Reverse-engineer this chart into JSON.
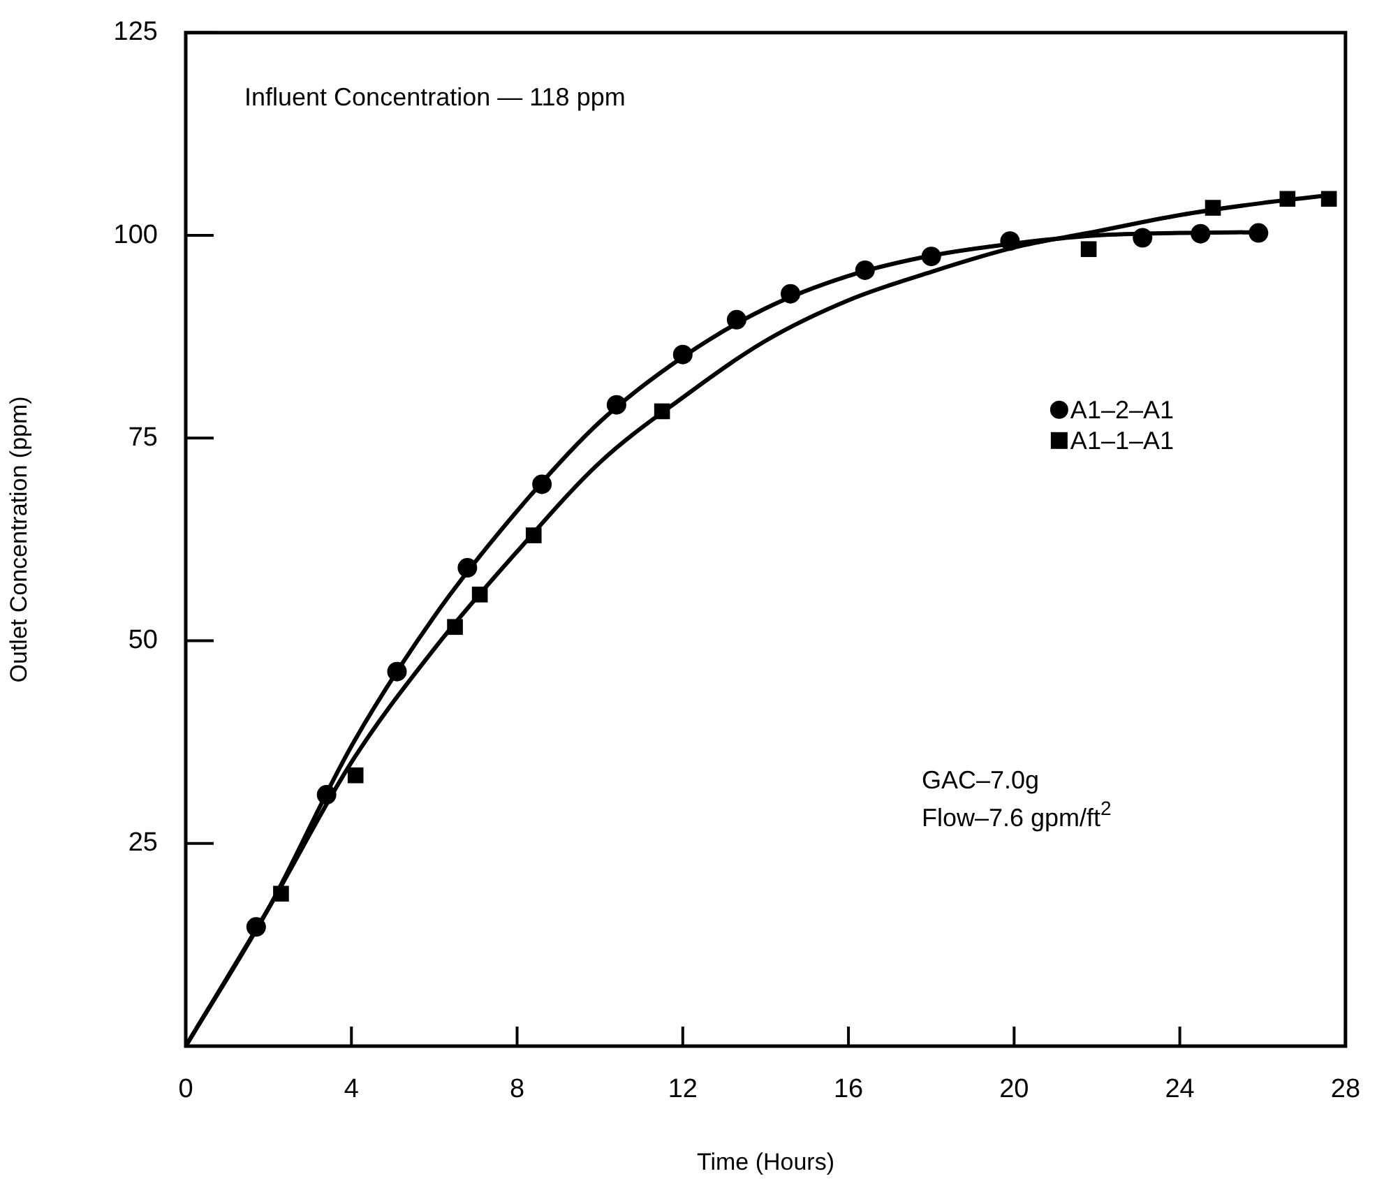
{
  "chart_data": {
    "type": "scatter",
    "xlabel": "Time (Hours)",
    "ylabel": "Outlet Concentration (ppm)",
    "xlim": [
      0,
      28
    ],
    "xticks": [
      0,
      4,
      8,
      12,
      16,
      20,
      24,
      28
    ],
    "ylim": [
      0,
      125
    ],
    "yticks": [
      25,
      50,
      75,
      100,
      125
    ],
    "grid": false,
    "legend": "right",
    "annotations": [
      "Influent Concentration — 118 ppm",
      "GAC–7.0g",
      "Flow–7.6 gpm/ft$^{2}$"
    ],
    "series": [
      {
        "name": "A1–2–A1",
        "marker": "circle",
        "color": "#000000",
        "x": [
          1.7,
          3.4,
          5.1,
          6.8,
          8.6,
          10.4,
          12.0,
          13.3,
          14.6,
          16.4,
          18.0,
          19.9,
          23.1,
          24.5,
          25.9
        ],
        "values": [
          14.7,
          31,
          46.2,
          59,
          69.3,
          79.1,
          85.3,
          89.6,
          92.8,
          95.7,
          97.4,
          99.3,
          99.7,
          100.2,
          100.3
        ]
      },
      {
        "name": "A1–1–A1",
        "marker": "square",
        "color": "#000000",
        "x": [
          2.3,
          4.1,
          6.5,
          7.1,
          8.4,
          11.5,
          21.8,
          24.8,
          26.6,
          27.6
        ],
        "values": [
          18.8,
          33.4,
          51.7,
          55.7,
          63,
          78.3,
          98.3,
          103.4,
          104.5,
          104.5
        ]
      },
      {
        "type": "line",
        "marker": "none",
        "color": "#000000",
        "x": [
          0,
          2,
          4,
          6,
          8,
          10,
          12,
          14,
          16,
          18,
          20,
          22,
          24,
          26
        ],
        "values": [
          0,
          17,
          37,
          53,
          66,
          77,
          85,
          91,
          95,
          97.5,
          99,
          100,
          100.3,
          100.4
        ]
      },
      {
        "type": "line",
        "marker": "none",
        "color": "#000000",
        "x": [
          0,
          2,
          4,
          6,
          8,
          10,
          12,
          14,
          16,
          18,
          20,
          22,
          24,
          26,
          27.7
        ],
        "values": [
          0,
          17,
          35,
          49,
          61,
          72,
          80,
          87,
          92,
          95.5,
          98.5,
          100.5,
          102.5,
          104,
          105
        ]
      }
    ]
  }
}
